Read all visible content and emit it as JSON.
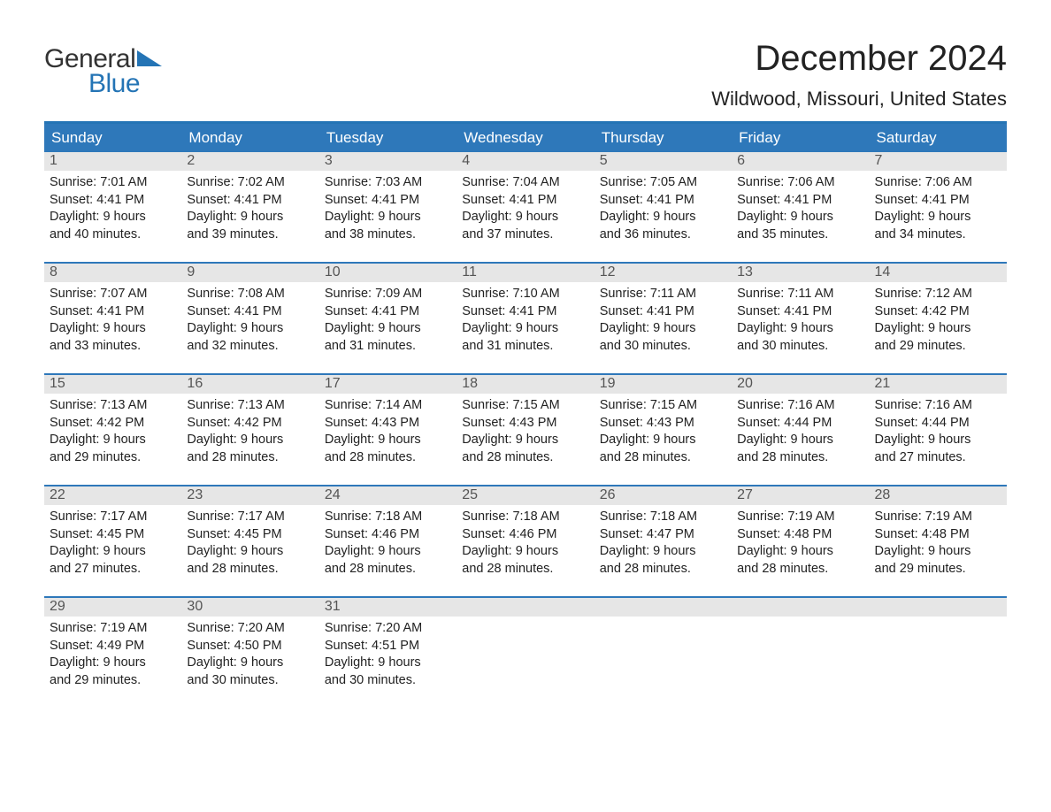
{
  "logo": {
    "word1": "General",
    "word2": "Blue"
  },
  "title": "December 2024",
  "location": "Wildwood, Missouri, United States",
  "colors": {
    "accent": "#2e78ba",
    "accent_border": "#2474b5",
    "header_text": "#ffffff",
    "daynum_bg": "#e6e6e6",
    "daynum_text": "#555555",
    "body_text": "#222222",
    "page_bg": "#ffffff"
  },
  "calendar": {
    "day_headers": [
      "Sunday",
      "Monday",
      "Tuesday",
      "Wednesday",
      "Thursday",
      "Friday",
      "Saturday"
    ],
    "weeks": [
      [
        {
          "n": "1",
          "sunrise": "Sunrise: 7:01 AM",
          "sunset": "Sunset: 4:41 PM",
          "dl1": "Daylight: 9 hours",
          "dl2": "and 40 minutes."
        },
        {
          "n": "2",
          "sunrise": "Sunrise: 7:02 AM",
          "sunset": "Sunset: 4:41 PM",
          "dl1": "Daylight: 9 hours",
          "dl2": "and 39 minutes."
        },
        {
          "n": "3",
          "sunrise": "Sunrise: 7:03 AM",
          "sunset": "Sunset: 4:41 PM",
          "dl1": "Daylight: 9 hours",
          "dl2": "and 38 minutes."
        },
        {
          "n": "4",
          "sunrise": "Sunrise: 7:04 AM",
          "sunset": "Sunset: 4:41 PM",
          "dl1": "Daylight: 9 hours",
          "dl2": "and 37 minutes."
        },
        {
          "n": "5",
          "sunrise": "Sunrise: 7:05 AM",
          "sunset": "Sunset: 4:41 PM",
          "dl1": "Daylight: 9 hours",
          "dl2": "and 36 minutes."
        },
        {
          "n": "6",
          "sunrise": "Sunrise: 7:06 AM",
          "sunset": "Sunset: 4:41 PM",
          "dl1": "Daylight: 9 hours",
          "dl2": "and 35 minutes."
        },
        {
          "n": "7",
          "sunrise": "Sunrise: 7:06 AM",
          "sunset": "Sunset: 4:41 PM",
          "dl1": "Daylight: 9 hours",
          "dl2": "and 34 minutes."
        }
      ],
      [
        {
          "n": "8",
          "sunrise": "Sunrise: 7:07 AM",
          "sunset": "Sunset: 4:41 PM",
          "dl1": "Daylight: 9 hours",
          "dl2": "and 33 minutes."
        },
        {
          "n": "9",
          "sunrise": "Sunrise: 7:08 AM",
          "sunset": "Sunset: 4:41 PM",
          "dl1": "Daylight: 9 hours",
          "dl2": "and 32 minutes."
        },
        {
          "n": "10",
          "sunrise": "Sunrise: 7:09 AM",
          "sunset": "Sunset: 4:41 PM",
          "dl1": "Daylight: 9 hours",
          "dl2": "and 31 minutes."
        },
        {
          "n": "11",
          "sunrise": "Sunrise: 7:10 AM",
          "sunset": "Sunset: 4:41 PM",
          "dl1": "Daylight: 9 hours",
          "dl2": "and 31 minutes."
        },
        {
          "n": "12",
          "sunrise": "Sunrise: 7:11 AM",
          "sunset": "Sunset: 4:41 PM",
          "dl1": "Daylight: 9 hours",
          "dl2": "and 30 minutes."
        },
        {
          "n": "13",
          "sunrise": "Sunrise: 7:11 AM",
          "sunset": "Sunset: 4:41 PM",
          "dl1": "Daylight: 9 hours",
          "dl2": "and 30 minutes."
        },
        {
          "n": "14",
          "sunrise": "Sunrise: 7:12 AM",
          "sunset": "Sunset: 4:42 PM",
          "dl1": "Daylight: 9 hours",
          "dl2": "and 29 minutes."
        }
      ],
      [
        {
          "n": "15",
          "sunrise": "Sunrise: 7:13 AM",
          "sunset": "Sunset: 4:42 PM",
          "dl1": "Daylight: 9 hours",
          "dl2": "and 29 minutes."
        },
        {
          "n": "16",
          "sunrise": "Sunrise: 7:13 AM",
          "sunset": "Sunset: 4:42 PM",
          "dl1": "Daylight: 9 hours",
          "dl2": "and 28 minutes."
        },
        {
          "n": "17",
          "sunrise": "Sunrise: 7:14 AM",
          "sunset": "Sunset: 4:43 PM",
          "dl1": "Daylight: 9 hours",
          "dl2": "and 28 minutes."
        },
        {
          "n": "18",
          "sunrise": "Sunrise: 7:15 AM",
          "sunset": "Sunset: 4:43 PM",
          "dl1": "Daylight: 9 hours",
          "dl2": "and 28 minutes."
        },
        {
          "n": "19",
          "sunrise": "Sunrise: 7:15 AM",
          "sunset": "Sunset: 4:43 PM",
          "dl1": "Daylight: 9 hours",
          "dl2": "and 28 minutes."
        },
        {
          "n": "20",
          "sunrise": "Sunrise: 7:16 AM",
          "sunset": "Sunset: 4:44 PM",
          "dl1": "Daylight: 9 hours",
          "dl2": "and 28 minutes."
        },
        {
          "n": "21",
          "sunrise": "Sunrise: 7:16 AM",
          "sunset": "Sunset: 4:44 PM",
          "dl1": "Daylight: 9 hours",
          "dl2": "and 27 minutes."
        }
      ],
      [
        {
          "n": "22",
          "sunrise": "Sunrise: 7:17 AM",
          "sunset": "Sunset: 4:45 PM",
          "dl1": "Daylight: 9 hours",
          "dl2": "and 27 minutes."
        },
        {
          "n": "23",
          "sunrise": "Sunrise: 7:17 AM",
          "sunset": "Sunset: 4:45 PM",
          "dl1": "Daylight: 9 hours",
          "dl2": "and 28 minutes."
        },
        {
          "n": "24",
          "sunrise": "Sunrise: 7:18 AM",
          "sunset": "Sunset: 4:46 PM",
          "dl1": "Daylight: 9 hours",
          "dl2": "and 28 minutes."
        },
        {
          "n": "25",
          "sunrise": "Sunrise: 7:18 AM",
          "sunset": "Sunset: 4:46 PM",
          "dl1": "Daylight: 9 hours",
          "dl2": "and 28 minutes."
        },
        {
          "n": "26",
          "sunrise": "Sunrise: 7:18 AM",
          "sunset": "Sunset: 4:47 PM",
          "dl1": "Daylight: 9 hours",
          "dl2": "and 28 minutes."
        },
        {
          "n": "27",
          "sunrise": "Sunrise: 7:19 AM",
          "sunset": "Sunset: 4:48 PM",
          "dl1": "Daylight: 9 hours",
          "dl2": "and 28 minutes."
        },
        {
          "n": "28",
          "sunrise": "Sunrise: 7:19 AM",
          "sunset": "Sunset: 4:48 PM",
          "dl1": "Daylight: 9 hours",
          "dl2": "and 29 minutes."
        }
      ],
      [
        {
          "n": "29",
          "sunrise": "Sunrise: 7:19 AM",
          "sunset": "Sunset: 4:49 PM",
          "dl1": "Daylight: 9 hours",
          "dl2": "and 29 minutes."
        },
        {
          "n": "30",
          "sunrise": "Sunrise: 7:20 AM",
          "sunset": "Sunset: 4:50 PM",
          "dl1": "Daylight: 9 hours",
          "dl2": "and 30 minutes."
        },
        {
          "n": "31",
          "sunrise": "Sunrise: 7:20 AM",
          "sunset": "Sunset: 4:51 PM",
          "dl1": "Daylight: 9 hours",
          "dl2": "and 30 minutes."
        },
        {
          "empty": true
        },
        {
          "empty": true
        },
        {
          "empty": true
        },
        {
          "empty": true
        }
      ]
    ]
  }
}
